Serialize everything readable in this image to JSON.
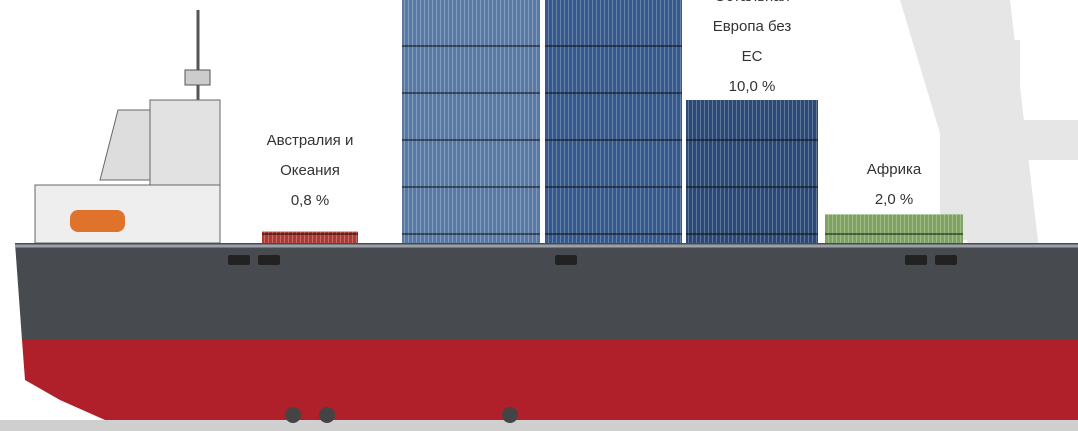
{
  "chart_data": {
    "type": "bar",
    "categories": [
      "Австралия и Океания",
      "Остальная Европа без ЕС",
      "Африка"
    ],
    "values": [
      0.8,
      10.0,
      2.0
    ],
    "value_labels": [
      "0,8 %",
      "10,0 %",
      "2,0 %"
    ],
    "colors": [
      "#b23a34",
      "#2c4a78",
      "#7fa462"
    ]
  }
}
